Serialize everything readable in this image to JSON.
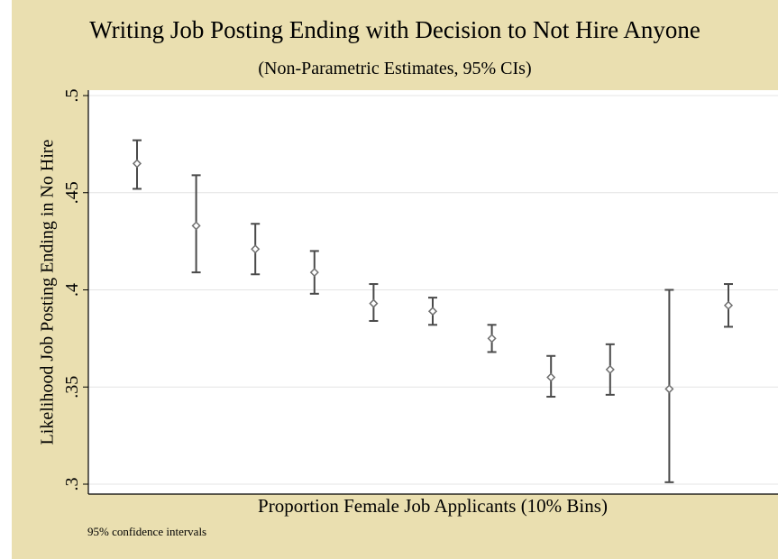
{
  "chart_data": {
    "type": "scatter",
    "title": "Writing Job Posting Ending with Decision to Not Hire Anyone",
    "subtitle": "(Non-Parametric Estimates, 95% CIs)",
    "xlabel": "Proportion Female Job Applicants (10% Bins)",
    "ylabel": "Likelihood Job Posting Ending in No Hire",
    "note": "95% confidence intervals",
    "ylim": [
      0.3,
      0.5
    ],
    "yticks": [
      0.3,
      0.35,
      0.4,
      0.45,
      0.5
    ],
    "ytick_labels": [
      ".3",
      ".35",
      ".4",
      ".45",
      ".5"
    ],
    "grid": true,
    "x": [
      1,
      2,
      3,
      4,
      5,
      6,
      7,
      8,
      9,
      10,
      11
    ],
    "estimates": [
      0.465,
      0.433,
      0.421,
      0.409,
      0.393,
      0.389,
      0.375,
      0.355,
      0.359,
      0.349,
      0.392
    ],
    "ci_upper": [
      0.477,
      0.459,
      0.434,
      0.42,
      0.403,
      0.396,
      0.382,
      0.366,
      0.372,
      0.4,
      0.403
    ],
    "ci_lower": [
      0.452,
      0.409,
      0.408,
      0.398,
      0.384,
      0.382,
      0.368,
      0.345,
      0.346,
      0.301,
      0.381
    ],
    "colors": {
      "background": "#eadfb0",
      "plot_area": "#ffffff",
      "gridline": "#e4e4e4",
      "marker": "#6f6f6f",
      "errorbar": "#4a4a4a"
    }
  }
}
